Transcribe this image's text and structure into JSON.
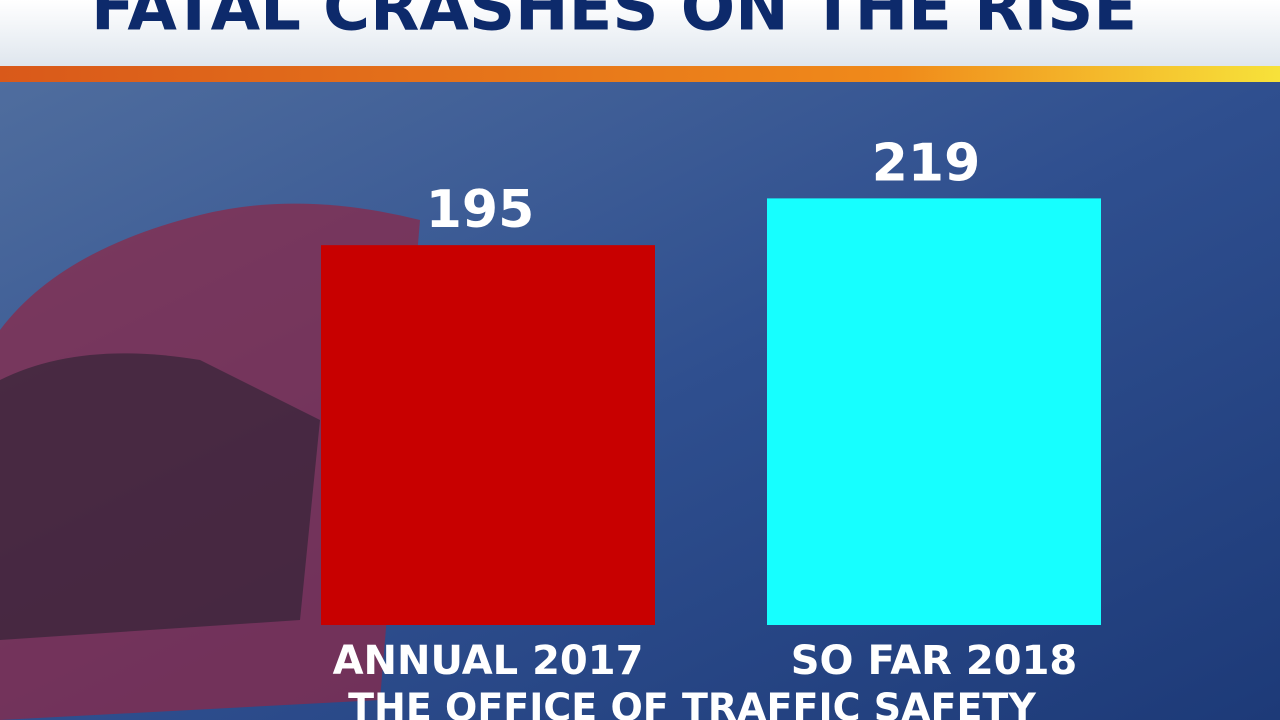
{
  "chart_data": {
    "type": "bar",
    "title": "FATAL CRASHES ON THE RISE",
    "categories": [
      "ANNUAL 2017",
      "SO FAR 2018"
    ],
    "values": [
      195,
      219
    ],
    "colors": [
      "#c80000",
      "#16ffff"
    ],
    "source": "THE OFFICE OF TRAFFIC SAFETY"
  }
}
